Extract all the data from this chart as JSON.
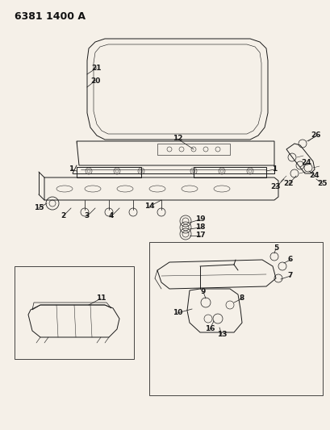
{
  "title": "6381 1400 A",
  "bg_color": "#f5f0e8",
  "line_color": "#1a1a1a",
  "title_fontsize": 9,
  "label_fontsize": 6.5,
  "fig_w": 4.1,
  "fig_h": 5.33,
  "dpi": 100
}
